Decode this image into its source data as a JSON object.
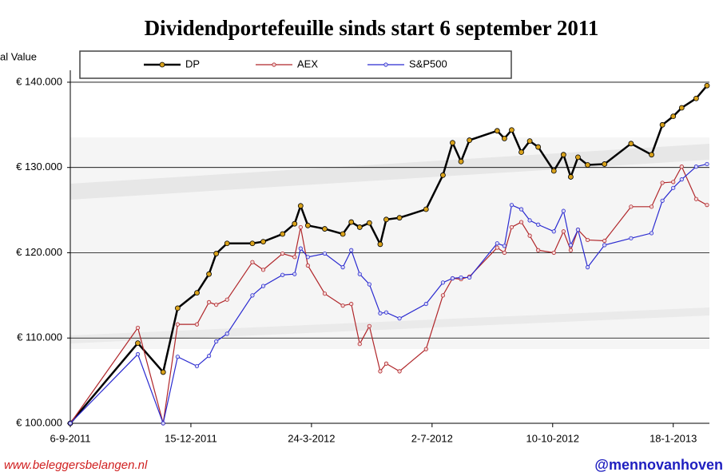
{
  "chart_data": {
    "type": "line",
    "title": "Dividendportefeuille sinds start 6 september 2011",
    "y_label": "al Value",
    "x": [
      "2011-09-06",
      "2011-11-01",
      "2011-11-22",
      "2011-12-04",
      "2011-12-20",
      "2011-12-30",
      "2012-01-05",
      "2012-01-14",
      "2012-02-04",
      "2012-02-13",
      "2012-02-29",
      "2012-03-10",
      "2012-03-15",
      "2012-03-21",
      "2012-04-04",
      "2012-04-19",
      "2012-04-26",
      "2012-05-03",
      "2012-05-11",
      "2012-05-20",
      "2012-05-25",
      "2012-06-05",
      "2012-06-27",
      "2012-07-11",
      "2012-07-19",
      "2012-07-26",
      "2012-08-02",
      "2012-08-25",
      "2012-08-31",
      "2012-09-06",
      "2012-09-14",
      "2012-09-21",
      "2012-09-28",
      "2012-10-11",
      "2012-10-19",
      "2012-10-25",
      "2012-10-31",
      "2012-11-08",
      "2012-11-22",
      "2012-12-14",
      "2012-12-31",
      "2013-01-09",
      "2013-01-18",
      "2013-01-25",
      "2013-02-06",
      "2013-02-15"
    ],
    "series": [
      {
        "name": "DP",
        "color": "#000000",
        "marker": "#d9a21b",
        "values": [
          100000,
          109400,
          106000,
          113500,
          115300,
          117500,
          119900,
          121100,
          121100,
          121300,
          122200,
          123400,
          125500,
          123200,
          122800,
          122200,
          123600,
          123000,
          123500,
          121000,
          123900,
          124100,
          125100,
          129100,
          132900,
          130700,
          133200,
          134300,
          133400,
          134400,
          131800,
          133100,
          132400,
          129600,
          131500,
          128900,
          131200,
          130300,
          130400,
          132800,
          131500,
          135000,
          136000,
          137000,
          138100,
          139600
        ]
      },
      {
        "name": "AEX",
        "color": "#b0262a",
        "marker": "#f4d6d6",
        "values": [
          100000,
          111200,
          100000,
          111600,
          111600,
          114200,
          113900,
          114500,
          118900,
          118000,
          119900,
          119500,
          123000,
          118500,
          115200,
          113800,
          114000,
          109300,
          111400,
          106100,
          107000,
          106100,
          108700,
          115000,
          117000,
          116900,
          117200,
          120600,
          120000,
          123000,
          123600,
          122000,
          120300,
          120000,
          122500,
          120300,
          122700,
          121500,
          121400,
          125400,
          125400,
          128200,
          128300,
          130100,
          126300,
          125600
        ]
      },
      {
        "name": "S&P500",
        "color": "#2a2ad0",
        "marker": "#d8d8f4",
        "values": [
          100000,
          108100,
          100000,
          107800,
          106700,
          107900,
          109600,
          110500,
          115000,
          116100,
          117400,
          117500,
          120500,
          119500,
          119900,
          118300,
          120300,
          117500,
          116300,
          112900,
          113000,
          112300,
          114000,
          116500,
          117000,
          117100,
          117100,
          121100,
          120800,
          125600,
          125100,
          123800,
          123300,
          122500,
          124900,
          120900,
          122700,
          118300,
          120900,
          121700,
          122300,
          126100,
          127600,
          128600,
          130100,
          130400
        ]
      }
    ],
    "xlim": [
      "2011-09-06",
      "2013-02-17"
    ],
    "xticks": [
      {
        "value": "2011-09-06",
        "label": "6-9-2011"
      },
      {
        "value": "2011-12-15",
        "label": "15-12-2011"
      },
      {
        "value": "2012-03-24",
        "label": "24-3-2012"
      },
      {
        "value": "2012-07-02",
        "label": "2-7-2012"
      },
      {
        "value": "2012-10-10",
        "label": "10-10-2012"
      },
      {
        "value": "2013-01-18",
        "label": "18-1-2013"
      }
    ],
    "ylim": [
      100000,
      141400
    ],
    "yticks": [
      {
        "value": 100000,
        "label": "€ 100.000"
      },
      {
        "value": 110000,
        "label": "€ 110.000"
      },
      {
        "value": 120000,
        "label": "€ 120.000"
      },
      {
        "value": 130000,
        "label": "€ 130.000"
      },
      {
        "value": 140000,
        "label": "€ 140.000"
      }
    ],
    "grid": true,
    "footer_left": "www.beleggersbelangen.nl",
    "footer_right": "@mennovanhoven"
  }
}
